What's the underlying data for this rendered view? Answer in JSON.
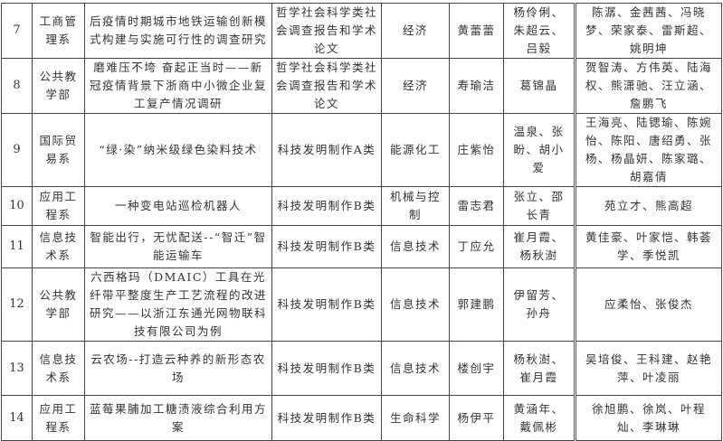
{
  "rows": [
    {
      "no": "7",
      "dept": "工商管理系",
      "title": "后疫情时期城市地铁运输创新模式构建与实施可行性的调查研究",
      "category": "哲学社会科学类社会调查报告和学术论文",
      "field": "经济",
      "leader": "黄蕾蕾",
      "advisors": "杨伶俐、朱超云、吕毅",
      "members": "陈潺、金茜茜、冯晓梦、荣家泰、雷斯超、姚明坤"
    },
    {
      "no": "8",
      "dept": "公共教学部",
      "title": "磨难压不垮 奋起正当时——新冠疫情背景下浙商中小微企业复工复产情况调研",
      "category": "哲学社会科学类社会调查报告和学术论文",
      "field": "经济",
      "leader": "寿瑜洁",
      "advisors": "葛锦晶",
      "members": "贺智涛、方伟英、陆海权、熊潇驰、汪立涵、詹鹏飞"
    },
    {
      "no": "9",
      "dept": "国际贸易系",
      "title": "“绿·染”纳米级绿色染料技术",
      "category": "科技发明制作A类",
      "field": "能源化工",
      "leader": "庄紫怡",
      "advisors": "温泉、张盼、胡小爱",
      "members": "王海亮、陆锶瑜、陈婉怡、陈阳、唐绍勇、张杨、杨晶妍、陈家璐、胡嘉倩"
    },
    {
      "no": "10",
      "dept": "应用工程系",
      "title": "一种变电站巡检机器人",
      "category": "科技发明制作B类",
      "field": "机械与控制",
      "leader": "雷志君",
      "advisors": "张立、邵长青",
      "members": "苑立才、熊高超"
    },
    {
      "no": "11",
      "dept": "信息技术系",
      "title": "智能出行，无忧配送--“智迁”智能运输车",
      "category": "科技发明制作B类",
      "field": "信息技术",
      "leader": "丁应允",
      "advisors": "崔月霞、杨秋澍",
      "members": "黄佳豪、叶家恺、韩荟学、季悦凯"
    },
    {
      "no": "12",
      "dept": "公共教学部",
      "title": "六西格玛（DMAIC）工具在光纤带平整度生产工艺流程的改进研究——以浙江东通光网物联科技有限公司为例",
      "category": "科技发明制作B类",
      "field": "信息技术",
      "leader": "郭建鹏",
      "advisors": "伊留芳、孙舟",
      "members": "应柔怡、张俊杰"
    },
    {
      "no": "13",
      "dept": "信息技术系",
      "title": "云农场--打造云种养的新形态农场",
      "category": "科技发明制作B类",
      "field": "信息技术",
      "leader": "楼创宇",
      "advisors": "杨秋澍、崔月霞",
      "members": "吴培俊、王科建、赵艳萍、叶凌丽"
    },
    {
      "no": "14",
      "dept": "应用工程系",
      "title": "蓝莓果脯加工糖渍液综合利用方案",
      "category": "科技发明制作B类",
      "field": "生命科学",
      "leader": "杨伊平",
      "advisors": "黄涵年、戴佩彬",
      "members": "徐旭鹏、徐岚、叶程灿、李琳琳"
    }
  ]
}
